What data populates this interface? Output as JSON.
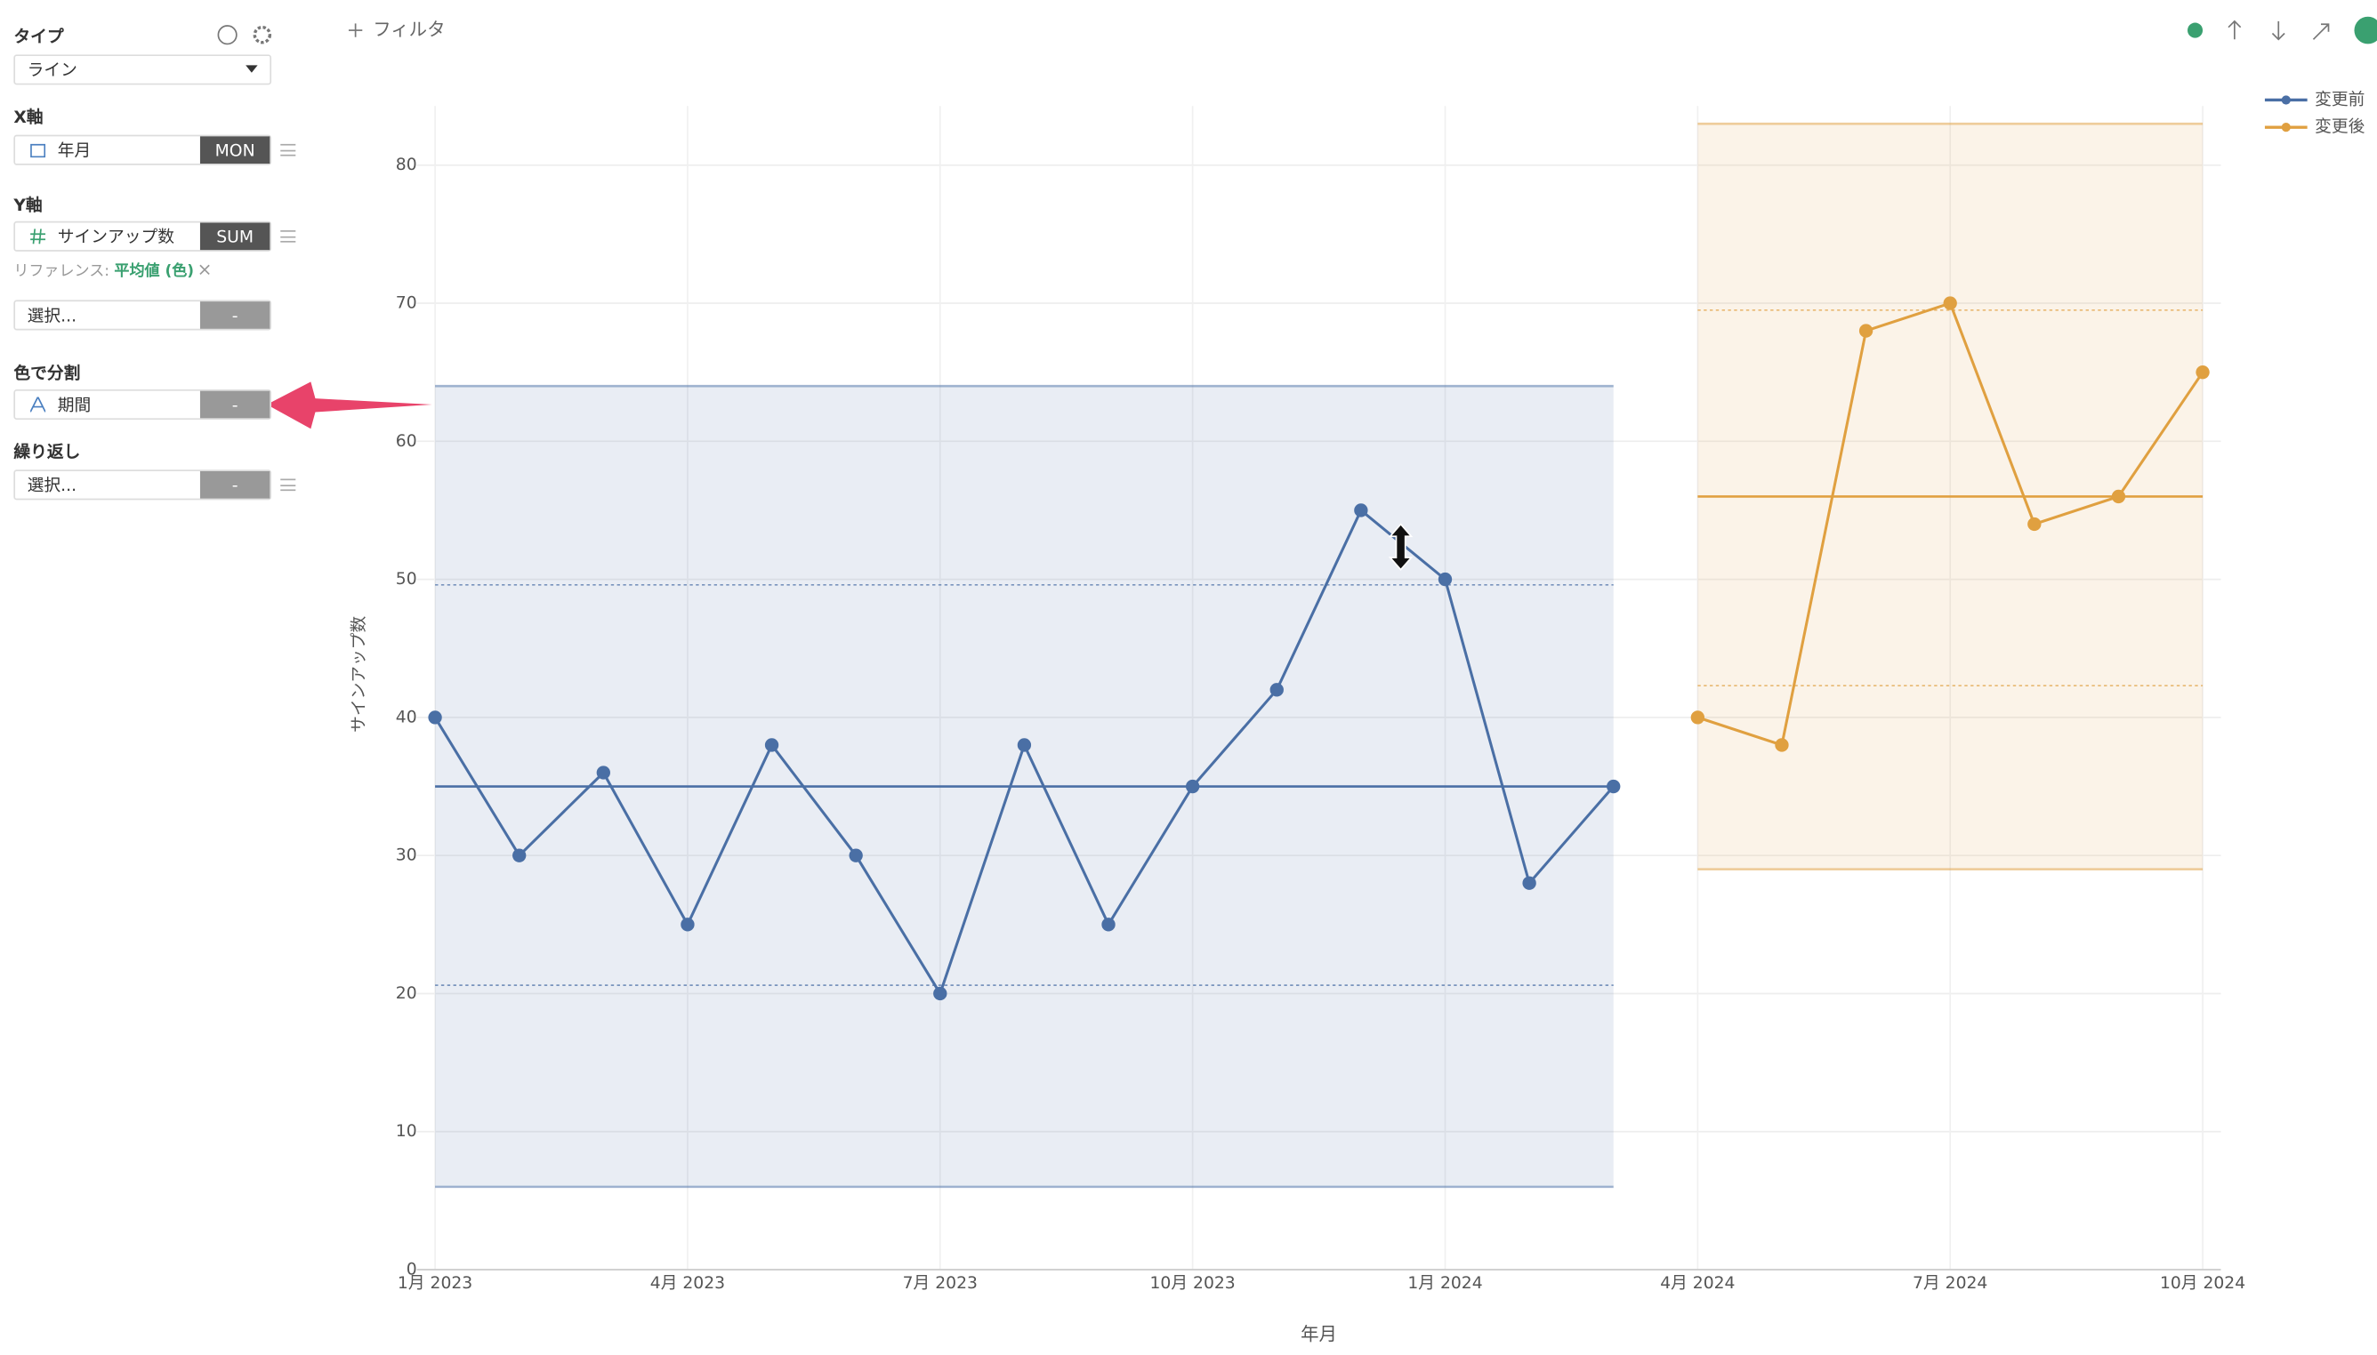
{
  "toolbar": {
    "filter": "フィルタ"
  },
  "sidebar": {
    "type_label": "タイプ",
    "type_value": "ライン",
    "x_label": "X軸",
    "x_field": "年月",
    "x_agg": "MON",
    "y_label": "Y軸",
    "y_field": "サインアップ数",
    "y_agg": "SUM",
    "reference_label": "リファレンス:",
    "reference_value": "平均値 (色)",
    "y_extra": "選択...",
    "y_extra_agg": "-",
    "color_label": "色で分割",
    "color_field": "期間",
    "color_agg": "-",
    "repeat_label": "繰り返し",
    "repeat_field": "選択...",
    "repeat_agg": "-"
  },
  "chart_data": {
    "type": "line",
    "x_label": "年月",
    "y_label": "サインアップ数",
    "categories": [
      "1月 2023",
      null,
      null,
      "4月 2023",
      null,
      null,
      "7月 2023",
      null,
      null,
      "10月 2023",
      null,
      null,
      "1月 2024",
      null,
      null,
      "4月 2024",
      null,
      null,
      "7月 2024",
      null,
      null,
      "10月 2024"
    ],
    "series": [
      {
        "name": "変更前",
        "color": "#4a6fa5",
        "values": [
          40,
          30,
          36,
          25,
          38,
          30,
          20,
          38,
          25,
          35,
          42,
          55,
          50,
          28,
          35,
          null,
          null,
          null,
          null,
          null,
          null,
          null
        ],
        "mean": 35,
        "ref_lines": [
          49.6,
          20.6
        ],
        "band": [
          6,
          64
        ]
      },
      {
        "name": "変更後",
        "color": "#e0a040",
        "values": [
          null,
          null,
          null,
          null,
          null,
          null,
          null,
          null,
          null,
          null,
          null,
          null,
          null,
          null,
          null,
          40,
          38,
          68,
          70,
          54,
          56,
          65
        ],
        "mean": 56,
        "ref_lines": [
          69.5,
          42.3
        ],
        "band": [
          29,
          83
        ]
      }
    ],
    "ylim": [
      0,
      80
    ],
    "yticks": [
      0,
      10,
      20,
      30,
      40,
      50,
      60,
      70,
      80
    ],
    "grid": true,
    "legend": "top-right"
  }
}
